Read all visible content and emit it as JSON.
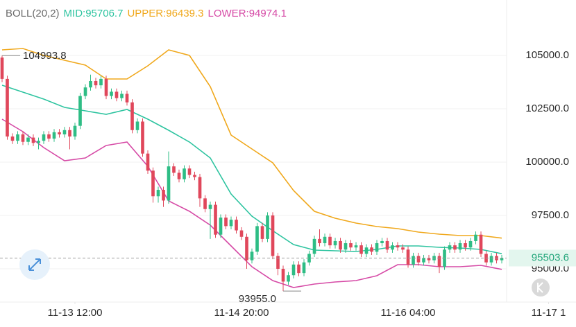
{
  "chart_data": {
    "type": "candlestick",
    "indicator": "BOLL(20,2)",
    "open": [
      104900,
      103900,
      101200,
      101000,
      101300,
      100950,
      101150,
      100900,
      101000,
      101300,
      101100,
      101400,
      101300,
      101500,
      101200,
      101700,
      103100,
      103500,
      103800,
      103600,
      103900,
      103100,
      103300,
      103000,
      103200,
      102800,
      101500,
      101900,
      100400,
      99600,
      98400,
      98700,
      98200,
      99800,
      99500,
      99200,
      99700,
      99400,
      99300,
      98300,
      97800,
      98000,
      96600,
      97400,
      97000,
      97300,
      96800,
      96500,
      95400,
      95800,
      97000,
      96400,
      97500,
      95600,
      95000,
      94400,
      94700,
      95200,
      94800,
      95300,
      95700,
      96400,
      96200,
      96500,
      96100,
      96300,
      95900,
      96200,
      96000,
      96100,
      95700,
      96000,
      95800,
      96200,
      96300,
      95900,
      96100,
      96000,
      95900,
      95200,
      95600,
      95300,
      95500,
      95400,
      95600,
      95100,
      95900,
      96100,
      95900,
      96200,
      96000,
      96300,
      96600,
      95700,
      95300,
      95600,
      95400
    ],
    "high": [
      104993.8,
      104050,
      101350,
      101450,
      101450,
      101300,
      101300,
      101150,
      101450,
      101450,
      101550,
      101550,
      101650,
      101650,
      101850,
      103250,
      103650,
      104100,
      103950,
      104050,
      104050,
      103450,
      103450,
      103350,
      103350,
      102950,
      102050,
      102050,
      100550,
      99750,
      98850,
      98850,
      100500,
      99950,
      99650,
      99850,
      99850,
      99550,
      99450,
      98450,
      98150,
      98150,
      97550,
      97550,
      97450,
      97450,
      96950,
      96650,
      95950,
      97150,
      97150,
      97650,
      97650,
      95750,
      95150,
      94850,
      95350,
      95350,
      95450,
      95850,
      96550,
      96850,
      96650,
      96650,
      96450,
      96450,
      96350,
      96350,
      96250,
      96250,
      96150,
      96150,
      96350,
      96450,
      96450,
      96250,
      96250,
      96150,
      96050,
      95750,
      95750,
      95650,
      95650,
      95750,
      95750,
      96050,
      96250,
      96250,
      96350,
      96350,
      96450,
      96750,
      96750,
      95850,
      95750,
      95750,
      95650
    ],
    "low": [
      103750,
      101050,
      100850,
      100850,
      100800,
      100800,
      100750,
      100600,
      100850,
      100950,
      100950,
      101150,
      101150,
      100600,
      101050,
      101550,
      102950,
      103350,
      103450,
      103450,
      102950,
      102950,
      102850,
      102850,
      102650,
      101350,
      101350,
      100250,
      99450,
      98100,
      98100,
      97900,
      98050,
      99350,
      99050,
      99050,
      99250,
      99150,
      97900,
      97650,
      96400,
      96450,
      96450,
      96850,
      96850,
      96650,
      96350,
      95000,
      95250,
      95650,
      96250,
      96250,
      95450,
      94700,
      93955,
      94250,
      94550,
      94650,
      94650,
      95150,
      95550,
      96050,
      96050,
      95950,
      95950,
      95750,
      95750,
      95850,
      95850,
      95550,
      95550,
      95650,
      95650,
      96050,
      95750,
      95750,
      95850,
      95750,
      95050,
      95050,
      95150,
      95150,
      95250,
      95250,
      94800,
      94950,
      95750,
      95750,
      95750,
      95850,
      95850,
      96150,
      95550,
      95150,
      95150,
      95250,
      95250
    ],
    "close": [
      103900,
      101200,
      101000,
      101300,
      100950,
      101150,
      100900,
      101000,
      101300,
      101100,
      101400,
      101300,
      101500,
      101200,
      101700,
      103100,
      103500,
      103800,
      103600,
      103900,
      103100,
      103300,
      103000,
      103200,
      102800,
      101500,
      101900,
      100400,
      99600,
      98400,
      98700,
      98200,
      99800,
      99500,
      99200,
      99700,
      99400,
      99300,
      98300,
      97800,
      98000,
      96600,
      97400,
      97000,
      97300,
      96800,
      96500,
      95400,
      95800,
      97000,
      96400,
      97500,
      95600,
      95000,
      94400,
      94700,
      95200,
      94800,
      95300,
      95700,
      96400,
      96200,
      96500,
      96100,
      96300,
      95900,
      96200,
      96000,
      96100,
      95700,
      96000,
      95800,
      96200,
      96300,
      95900,
      96100,
      96000,
      95900,
      95200,
      95600,
      95300,
      95500,
      95400,
      95600,
      95100,
      95900,
      96100,
      95900,
      96200,
      96000,
      96300,
      96600,
      95700,
      95300,
      95600,
      95400,
      95503.6
    ],
    "up_color": "#2ebd85",
    "down_color": "#e0475b",
    "series": [
      {
        "name": "MID:95706.7",
        "color": "#2ec4a0",
        "x": [
          0,
          4,
          8,
          12,
          16,
          20,
          24,
          28,
          32,
          36,
          40,
          44,
          48,
          52,
          56,
          60,
          64,
          68,
          72,
          76,
          80,
          84,
          88,
          92,
          96
        ],
        "values": [
          103604,
          103279,
          102955,
          102565,
          102402,
          102240,
          102467,
          102013,
          101493,
          100941,
          100194,
          98506,
          97467,
          96785,
          96136,
          95877,
          95844,
          95812,
          95909,
          96071,
          96071,
          96006,
          95974,
          95909,
          95706.7
        ]
      },
      {
        "name": "UPPER:96439.3",
        "color": "#f0a81c",
        "x": [
          0,
          4,
          8,
          12,
          16,
          20,
          24,
          28,
          32,
          36,
          40,
          44,
          48,
          52,
          56,
          60,
          64,
          68,
          72,
          76,
          80,
          84,
          88,
          92,
          96
        ],
        "values": [
          105260,
          105325,
          105000,
          104773,
          104545,
          103896,
          103896,
          104513,
          105260,
          105000,
          103539,
          101266,
          100617,
          99968,
          98669,
          97695,
          97370,
          97143,
          96981,
          96883,
          96721,
          96623,
          96558,
          96558,
          96439.3
        ]
      },
      {
        "name": "LOWER:94974.1",
        "color": "#d64aa6",
        "x": [
          0,
          4,
          8,
          12,
          16,
          20,
          24,
          28,
          32,
          36,
          40,
          44,
          48,
          52,
          56,
          60,
          64,
          68,
          72,
          76,
          80,
          84,
          88,
          92,
          96
        ],
        "values": [
          102013,
          101428,
          100682,
          100065,
          100194,
          100779,
          100941,
          99805,
          98181,
          97695,
          97045,
          96071,
          95097,
          94448,
          94123,
          94285,
          94383,
          94448,
          94675,
          95194,
          95194,
          95097,
          95097,
          95162,
          94974.1
        ]
      }
    ],
    "annotations": [
      {
        "x": 0,
        "value": 104993.8,
        "label": "104993.8"
      },
      {
        "x": 54,
        "value": 93955,
        "label": "93955.0"
      }
    ],
    "xlim": [
      -0.4,
      96.93
    ],
    "ylim": [
      93441,
      107598
    ],
    "yticks": [
      {
        "value": 95000,
        "label": "95000.0"
      },
      {
        "value": 97500,
        "label": "97500.0"
      },
      {
        "value": 100000,
        "label": "100000.0"
      },
      {
        "value": 102500,
        "label": "102500.0"
      },
      {
        "value": 105000,
        "label": "105000.0"
      }
    ],
    "xticks": [
      {
        "value": 14,
        "label": "11-13 12:00"
      },
      {
        "value": 46,
        "label": "11-14 20:00"
      },
      {
        "value": 78,
        "label": "11-16 04:00"
      },
      {
        "value": 105,
        "label": "11-17 1"
      }
    ],
    "grid": true
  }
}
